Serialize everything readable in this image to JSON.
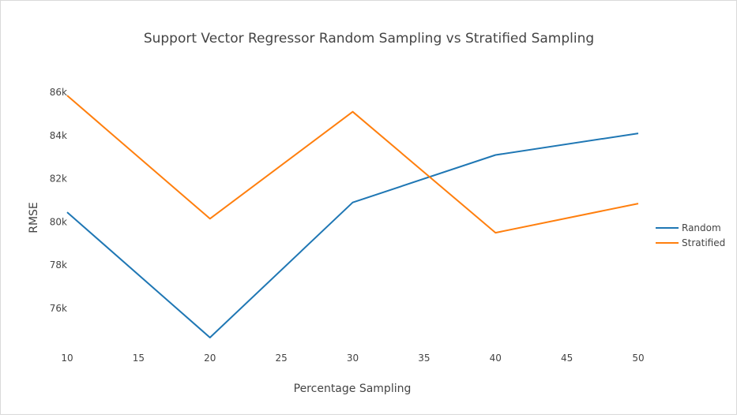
{
  "chart_data": {
    "type": "line",
    "title": "Support Vector Regressor Random Sampling vs Stratified Sampling",
    "xlabel": "Percentage Sampling",
    "ylabel": "RMSE",
    "xlim": [
      10,
      50
    ],
    "ylim": [
      74300,
      86600
    ],
    "x_ticks": [
      10,
      15,
      20,
      25,
      30,
      35,
      40,
      45,
      50
    ],
    "x_tick_labels": [
      "10",
      "15",
      "20",
      "25",
      "30",
      "35",
      "40",
      "45",
      "50"
    ],
    "y_ticks": [
      76000,
      78000,
      80000,
      82000,
      84000,
      86000
    ],
    "y_tick_labels": [
      "76k",
      "78k",
      "80k",
      "82k",
      "84k",
      "86k"
    ],
    "grid": false,
    "legend_position": "right",
    "series": [
      {
        "name": "Random",
        "color": "#1f77b4",
        "x": [
          10,
          20,
          30,
          40,
          50
        ],
        "y": [
          80450,
          74650,
          80900,
          83100,
          84100
        ]
      },
      {
        "name": "Stratified",
        "color": "#ff7f0e",
        "x": [
          10,
          20,
          30,
          40,
          50
        ],
        "y": [
          85850,
          80150,
          85100,
          79500,
          80850
        ]
      }
    ]
  }
}
